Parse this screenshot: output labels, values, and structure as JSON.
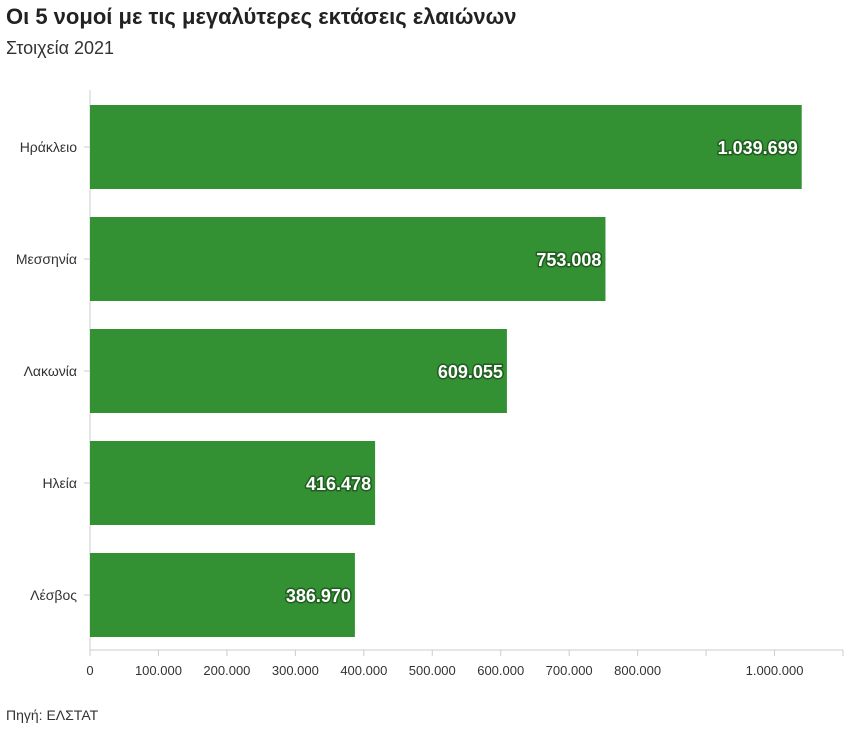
{
  "title": "Οι 5 νομοί με τις μεγαλύτερες εκτάσεις ελαιώνων",
  "subtitle": "Στοιχεία 2021",
  "source": "Πηγή: ΕΛΣΤΑΤ",
  "colors": {
    "bar": "#339133",
    "axis": "#cccccc"
  },
  "chart_data": {
    "type": "bar",
    "orientation": "horizontal",
    "categories": [
      "Ηράκλειο",
      "Μεσσηνία",
      "Λακωνία",
      "Ηλεία",
      "Λέσβος"
    ],
    "values": [
      1039699,
      753008,
      609055,
      416478,
      386970
    ],
    "value_labels": [
      "1.039.699",
      "753.008",
      "609.055",
      "416.478",
      "386.970"
    ],
    "xlim": [
      0,
      1100000
    ],
    "x_ticks": [
      0,
      100000,
      200000,
      300000,
      400000,
      500000,
      600000,
      700000,
      800000,
      900000,
      1000000,
      1100000
    ],
    "x_tick_labels": [
      "0",
      "100.000",
      "200.000",
      "300.000",
      "400.000",
      "500.000",
      "600.000",
      "700.000",
      "800.000",
      "",
      "1.000.000",
      ""
    ]
  }
}
